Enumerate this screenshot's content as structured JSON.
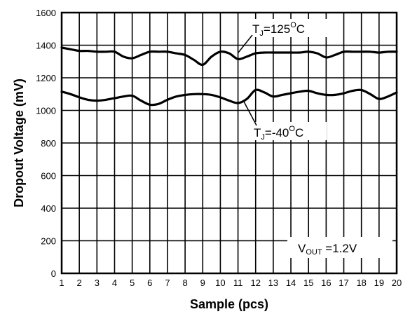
{
  "chart_data": {
    "type": "line",
    "xlabel": "Sample (pcs)",
    "ylabel": "Dropout Voltage (mV)",
    "xlim": [
      1,
      20
    ],
    "ylim": [
      0,
      1600
    ],
    "x_ticks": [
      1,
      2,
      3,
      4,
      5,
      6,
      7,
      8,
      9,
      10,
      11,
      12,
      13,
      14,
      15,
      16,
      17,
      18,
      19,
      20
    ],
    "y_ticks": [
      0,
      200,
      400,
      600,
      800,
      1000,
      1200,
      1400,
      1600
    ],
    "grid": true,
    "series": [
      {
        "name": "TJ=125°C",
        "x": [
          1,
          1.5,
          2,
          2.5,
          3,
          3.5,
          4,
          4.5,
          5,
          5.5,
          6,
          6.5,
          7,
          7.5,
          8,
          8.5,
          9,
          9.5,
          10,
          10.5,
          11,
          11.5,
          12,
          12.5,
          13,
          13.5,
          14,
          14.5,
          15,
          15.5,
          16,
          16.5,
          17,
          17.5,
          18,
          18.5,
          19,
          19.5,
          20
        ],
        "y": [
          1385,
          1375,
          1365,
          1365,
          1360,
          1360,
          1360,
          1330,
          1320,
          1340,
          1360,
          1360,
          1360,
          1350,
          1340,
          1310,
          1280,
          1330,
          1360,
          1350,
          1315,
          1330,
          1350,
          1355,
          1355,
          1355,
          1355,
          1355,
          1360,
          1350,
          1325,
          1340,
          1360,
          1360,
          1360,
          1360,
          1355,
          1360,
          1360
        ]
      },
      {
        "name": "TJ=-40°C",
        "x": [
          1,
          1.5,
          2,
          2.5,
          3,
          3.5,
          4,
          4.5,
          5,
          5.5,
          6,
          6.5,
          7,
          7.5,
          8,
          8.5,
          9,
          9.5,
          10,
          10.5,
          11,
          11.5,
          12,
          12.5,
          13,
          13.5,
          14,
          14.5,
          15,
          15.5,
          16,
          16.5,
          17,
          17.5,
          18,
          18.5,
          19,
          19.5,
          20
        ],
        "y": [
          1115,
          1100,
          1080,
          1065,
          1060,
          1065,
          1075,
          1085,
          1090,
          1060,
          1035,
          1040,
          1065,
          1085,
          1095,
          1100,
          1100,
          1095,
          1080,
          1060,
          1045,
          1070,
          1125,
          1110,
          1085,
          1095,
          1105,
          1115,
          1120,
          1105,
          1095,
          1095,
          1105,
          1120,
          1125,
          1100,
          1070,
          1085,
          1110
        ]
      }
    ],
    "annotations": [
      {
        "id": "t125",
        "main": "T",
        "sub": "J",
        "mid": "=125",
        "sup": "O",
        "tail": "C"
      },
      {
        "id": "tm40",
        "main": "T",
        "sub": "J",
        "mid": "=-40",
        "sup": "O",
        "tail": "C"
      },
      {
        "id": "vout",
        "main": "V",
        "sub": "OUT",
        "mid": " =1.2V",
        "sup": "",
        "tail": ""
      }
    ]
  }
}
